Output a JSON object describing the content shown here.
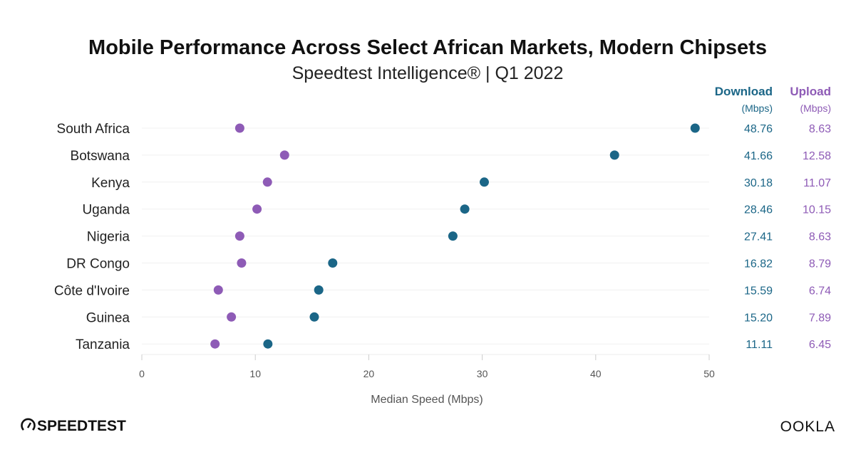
{
  "chart_data": {
    "type": "scatter",
    "title": "Mobile Performance  Across  Select African Markets, Modern Chipsets",
    "subtitle": "Speedtest Intelligence® | Q1 2022",
    "xlabel": "Median Speed (Mbps)",
    "xlim": [
      0,
      50
    ],
    "xticks": [
      "0",
      "10",
      "20",
      "30",
      "40",
      "50"
    ],
    "categories": [
      "South Africa",
      "Botswana",
      "Kenya",
      "Uganda",
      "Nigeria",
      "DR Congo",
      "Côte d'Ivoire",
      "Guinea",
      "Tanzania"
    ],
    "series": [
      {
        "name": "Download",
        "unit": "(Mbps)",
        "color": "#1b6687",
        "values": [
          48.76,
          41.66,
          30.18,
          28.46,
          27.41,
          16.82,
          15.59,
          15.2,
          11.11
        ],
        "labels": [
          "48.76",
          "41.66",
          "30.18",
          "28.46",
          "27.41",
          "16.82",
          "15.59",
          "15.20",
          "11.11"
        ]
      },
      {
        "name": "Upload",
        "unit": "(Mbps)",
        "color": "#8e5bb6",
        "values": [
          8.63,
          12.58,
          11.07,
          10.15,
          8.63,
          8.79,
          6.74,
          7.89,
          6.45
        ],
        "labels": [
          "8.63",
          "12.58",
          "11.07",
          "10.15",
          "8.63",
          "8.79",
          "6.74",
          "7.89",
          "6.45"
        ]
      }
    ]
  },
  "branding": {
    "left_logo": "SPEEDTEST",
    "right_logo": "OOKLA"
  }
}
